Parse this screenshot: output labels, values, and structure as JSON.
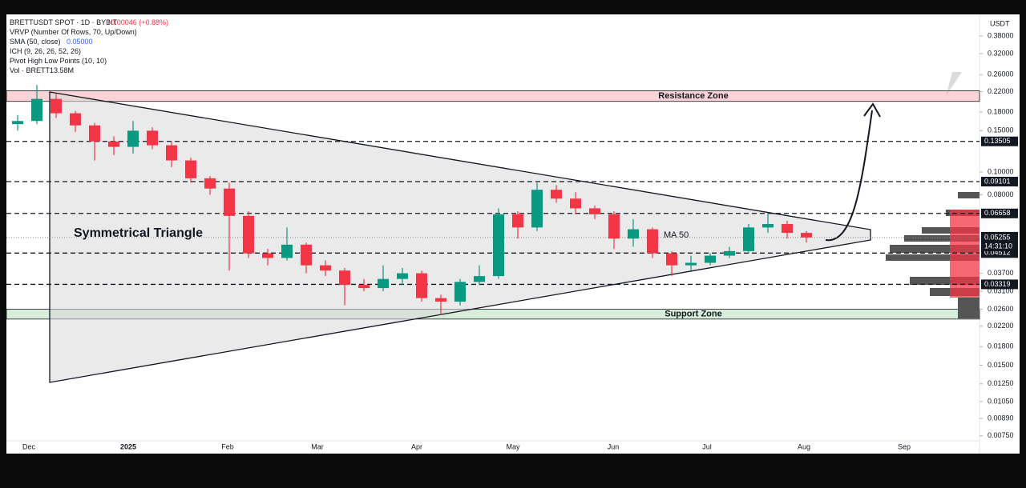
{
  "chart_data": {
    "type": "candlestick",
    "header": {
      "symbol": "BRETTUSDT SPOT · 1D · BYBIT",
      "change": "+0.00046 (+0.88%)",
      "indicators": [
        "VRVP (Number Of Rows, 70, Up/Down)",
        "SMA (50, close)",
        "ICH (9, 26, 26, 52, 26)",
        "Pivot High Low Points (10, 10)",
        "Vol · BRETT"
      ],
      "sma_value": "0.05000",
      "vol_value": "13.58M"
    },
    "y_unit": "USDT",
    "log_scale": true,
    "up_color": "#089981",
    "down_color": "#f23645",
    "ylim": [
      0.0072,
      0.4625
    ],
    "yticks": [
      {
        "value": 0.38,
        "label": "0.38000"
      },
      {
        "value": 0.32,
        "label": "0.32000"
      },
      {
        "value": 0.26,
        "label": "0.26000"
      },
      {
        "value": 0.22,
        "label": "0.22000"
      },
      {
        "value": 0.18,
        "label": "0.18000"
      },
      {
        "value": 0.15,
        "label": "0.15000"
      },
      {
        "value": 0.1,
        "label": "0.10000"
      },
      {
        "value": 0.08,
        "label": "0.08000"
      },
      {
        "value": 0.037,
        "label": "0.03700"
      },
      {
        "value": 0.031,
        "label": "0.03100"
      },
      {
        "value": 0.026,
        "label": "0.02600"
      },
      {
        "value": 0.022,
        "label": "0.02200"
      },
      {
        "value": 0.018,
        "label": "0.01800"
      },
      {
        "value": 0.015,
        "label": "0.01500"
      },
      {
        "value": 0.0125,
        "label": "0.01250"
      },
      {
        "value": 0.0105,
        "label": "0.01050"
      },
      {
        "value": 0.0089,
        "label": "0.00890"
      },
      {
        "value": 0.0075,
        "label": "0.00750"
      }
    ],
    "levels": [
      {
        "value": 0.13505,
        "label": "0.13505"
      },
      {
        "value": 0.09101,
        "label": "0.09101"
      },
      {
        "value": 0.06658,
        "label": "0.06658"
      },
      {
        "value": 0.04512,
        "label": "0.04512"
      },
      {
        "value": 0.03319,
        "label": "0.03319"
      }
    ],
    "last_price": {
      "value": 0.05255,
      "label": "0.05255",
      "countdown": "14:31:10"
    },
    "zones": [
      {
        "name": "Resistance Zone",
        "range": [
          0.2,
          0.222
        ],
        "color": "#f23645"
      },
      {
        "name": "Support Zone",
        "range": [
          0.0236,
          0.026
        ],
        "color": "#4caf50"
      }
    ],
    "annotations": [
      "Symmetrical Triangle",
      "MA 50"
    ],
    "x_labels": [
      "Dec",
      "2025",
      "Feb",
      "Mar",
      "Apr",
      "May",
      "Jun",
      "Jul",
      "Aug",
      "Sep"
    ],
    "categories": [
      null,
      null,
      null,
      null,
      null,
      null,
      null,
      null,
      null,
      null,
      null,
      null,
      null,
      null,
      null,
      null,
      null,
      null,
      null,
      null,
      null,
      null,
      null,
      null,
      null,
      null,
      null,
      null,
      null,
      null,
      null,
      null,
      null,
      null,
      null,
      null,
      null,
      null,
      null,
      null,
      null,
      null
    ],
    "open": [
      0.16,
      0.165,
      0.205,
      0.178,
      0.158,
      0.135,
      0.128,
      0.15,
      0.13,
      0.112,
      0.094,
      0.085,
      0.065,
      0.045,
      0.043,
      0.049,
      0.04,
      0.038,
      0.033,
      0.032,
      0.035,
      0.037,
      0.029,
      0.028,
      0.034,
      0.036,
      0.066,
      0.058,
      0.084,
      0.077,
      0.07,
      0.066,
      0.052,
      0.057,
      0.045,
      0.04,
      0.041,
      0.044,
      0.046,
      0.058,
      0.06,
      0.055
    ],
    "high": [
      0.175,
      0.235,
      0.215,
      0.182,
      0.162,
      0.142,
      0.165,
      0.155,
      0.135,
      0.115,
      0.096,
      0.09,
      0.068,
      0.047,
      0.058,
      0.05,
      0.042,
      0.039,
      0.035,
      0.04,
      0.039,
      0.038,
      0.03,
      0.035,
      0.04,
      0.07,
      0.068,
      0.09,
      0.088,
      0.082,
      0.072,
      0.068,
      0.063,
      0.058,
      0.046,
      0.044,
      0.045,
      0.048,
      0.06,
      0.067,
      0.062,
      0.056
    ],
    "low": [
      0.15,
      0.16,
      0.17,
      0.148,
      0.112,
      0.118,
      0.12,
      0.125,
      0.105,
      0.09,
      0.08,
      0.038,
      0.043,
      0.04,
      0.042,
      0.037,
      0.036,
      0.027,
      0.031,
      0.031,
      0.033,
      0.028,
      0.0245,
      0.027,
      0.033,
      0.035,
      0.052,
      0.056,
      0.074,
      0.066,
      0.063,
      0.047,
      0.048,
      0.043,
      0.036,
      0.038,
      0.04,
      0.043,
      0.045,
      0.055,
      0.052,
      0.05
    ],
    "close": [
      0.165,
      0.205,
      0.178,
      0.158,
      0.135,
      0.128,
      0.15,
      0.13,
      0.112,
      0.094,
      0.085,
      0.065,
      0.045,
      0.043,
      0.049,
      0.04,
      0.038,
      0.033,
      0.032,
      0.035,
      0.037,
      0.029,
      0.028,
      0.034,
      0.036,
      0.066,
      0.058,
      0.084,
      0.077,
      0.07,
      0.066,
      0.052,
      0.057,
      0.045,
      0.04,
      0.041,
      0.044,
      0.046,
      0.058,
      0.06,
      0.055,
      0.0526
    ]
  }
}
